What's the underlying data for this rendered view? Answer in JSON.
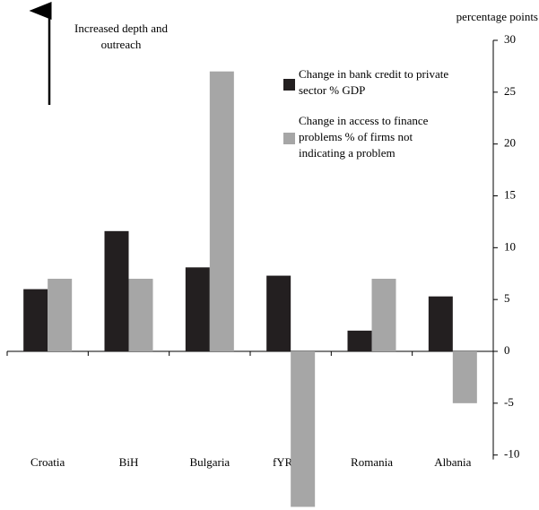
{
  "chart_data": {
    "type": "bar",
    "annotation": "Increased depth and outreach",
    "y_axis_label": "percentage points",
    "categories": [
      "Croatia",
      "BiH",
      "Bulgaria",
      "fYRoM",
      "Romania",
      "Albania"
    ],
    "series": [
      {
        "name": "Change in bank credit to private sector % GDP",
        "color": "#231f20",
        "values": [
          6,
          11.6,
          8.1,
          7.3,
          2,
          5.3
        ]
      },
      {
        "name": "Change in access to finance problems % of firms not indicating a problem",
        "color": "#a6a6a6",
        "values": [
          7,
          7,
          27,
          -15,
          7,
          -5
        ]
      }
    ],
    "ylim": [
      -15,
      30
    ],
    "yticks": [
      -10,
      -5,
      0,
      5,
      10,
      15,
      20,
      25,
      30
    ]
  }
}
